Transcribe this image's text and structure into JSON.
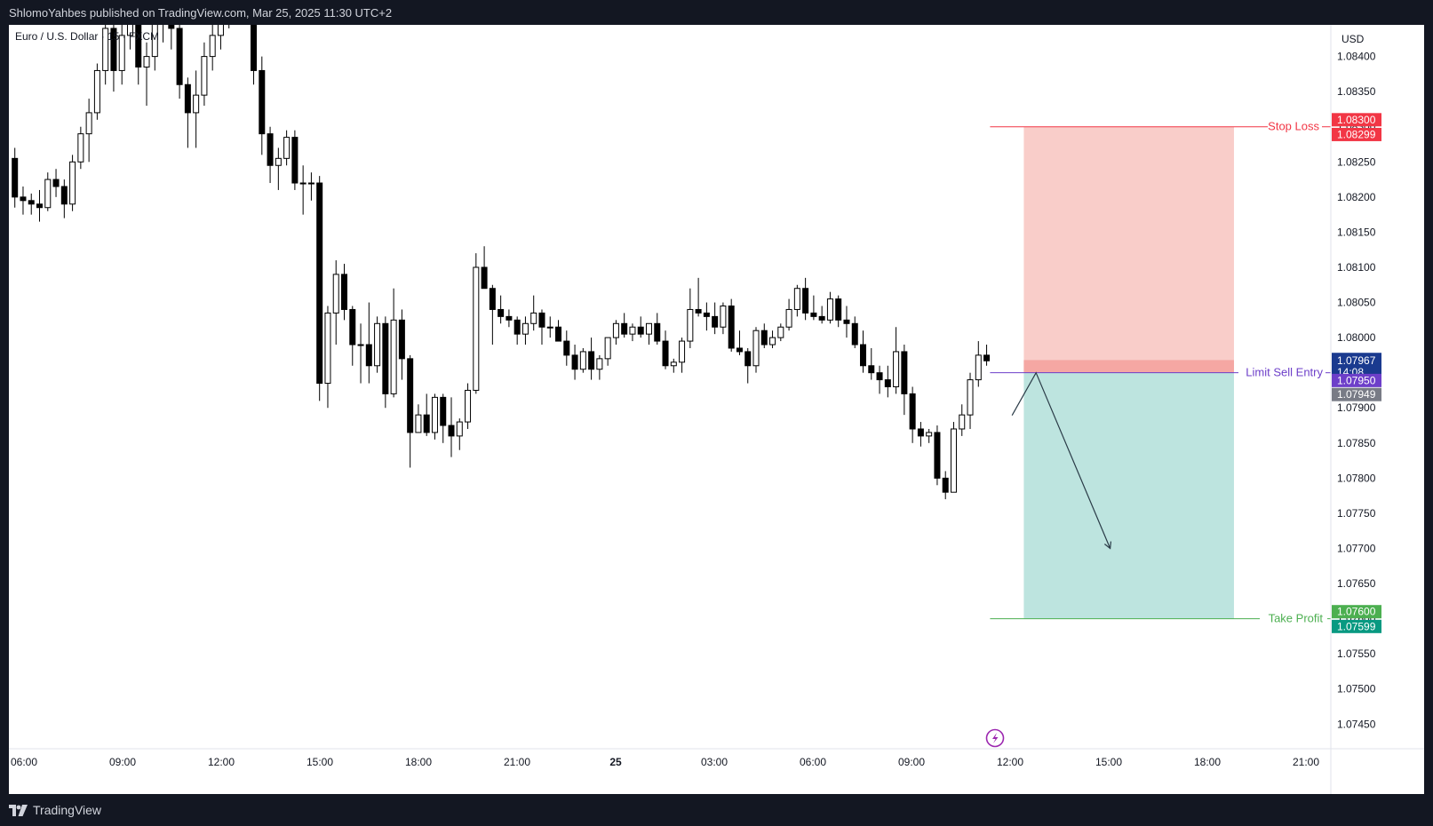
{
  "header": {
    "published": "ShlomoYahbes published on TradingView.com, Mar 25, 2025 11:30 UTC+2",
    "symbol": "Euro / U.S. Dollar · 15 · FXCM"
  },
  "footer": {
    "brand": "TradingView",
    "logo_icon": "tradingview-logo-icon"
  },
  "colors": {
    "stop_zone": "#f9cdc9",
    "target_zone": "#bde4df",
    "entry_band": "#f5a7a3",
    "stop_line": "#f23645",
    "target_line": "#4caf50",
    "entry_line": "#6d3fc9",
    "candle_up": "#ffffff",
    "candle_down": "#000000"
  },
  "chart_data": {
    "type": "candlestick",
    "symbol": "EURUSD",
    "timeframe_minutes": 15,
    "y_axis": {
      "currency": "USD",
      "ylim": [
        1.07415,
        1.08445
      ],
      "ticks": [
        "1.07450",
        "1.07500",
        "1.07550",
        "1.07600",
        "1.07650",
        "1.07700",
        "1.07750",
        "1.07800",
        "1.07850",
        "1.07900",
        "1.07950",
        "1.08000",
        "1.08050",
        "1.08100",
        "1.08150",
        "1.08200",
        "1.08250",
        "1.08300",
        "1.08350",
        "1.08400"
      ]
    },
    "x_axis": {
      "ticks": [
        {
          "label": "06:00",
          "bold": false
        },
        {
          "label": "09:00",
          "bold": false
        },
        {
          "label": "12:00",
          "bold": false
        },
        {
          "label": "15:00",
          "bold": false
        },
        {
          "label": "18:00",
          "bold": false
        },
        {
          "label": "21:00",
          "bold": false
        },
        {
          "label": "25",
          "bold": true
        },
        {
          "label": "03:00",
          "bold": false
        },
        {
          "label": "06:00",
          "bold": false
        },
        {
          "label": "09:00",
          "bold": false
        },
        {
          "label": "12:00",
          "bold": false
        },
        {
          "label": "15:00",
          "bold": false
        },
        {
          "label": "18:00",
          "bold": false
        },
        {
          "label": "21:00",
          "bold": false
        }
      ]
    },
    "candles": [
      {
        "o": 1.08255,
        "h": 1.0827,
        "l": 1.08185,
        "c": 1.082
      },
      {
        "o": 1.082,
        "h": 1.08215,
        "l": 1.08175,
        "c": 1.08195
      },
      {
        "o": 1.08195,
        "h": 1.08205,
        "l": 1.08175,
        "c": 1.0819
      },
      {
        "o": 1.0819,
        "h": 1.0821,
        "l": 1.08165,
        "c": 1.08185
      },
      {
        "o": 1.08185,
        "h": 1.08235,
        "l": 1.0818,
        "c": 1.08225
      },
      {
        "o": 1.08225,
        "h": 1.0824,
        "l": 1.082,
        "c": 1.08215
      },
      {
        "o": 1.08215,
        "h": 1.08225,
        "l": 1.0817,
        "c": 1.0819
      },
      {
        "o": 1.0819,
        "h": 1.0826,
        "l": 1.0818,
        "c": 1.0825
      },
      {
        "o": 1.0825,
        "h": 1.083,
        "l": 1.0824,
        "c": 1.0829
      },
      {
        "o": 1.0829,
        "h": 1.0834,
        "l": 1.0825,
        "c": 1.0832
      },
      {
        "o": 1.0832,
        "h": 1.0839,
        "l": 1.0831,
        "c": 1.0838
      },
      {
        "o": 1.0838,
        "h": 1.0847,
        "l": 1.0836,
        "c": 1.0844
      },
      {
        "o": 1.0844,
        "h": 1.0846,
        "l": 1.0835,
        "c": 1.0838
      },
      {
        "o": 1.0838,
        "h": 1.0845,
        "l": 1.0836,
        "c": 1.0843
      },
      {
        "o": 1.0843,
        "h": 1.085,
        "l": 1.0841,
        "c": 1.0847
      },
      {
        "o": 1.0847,
        "h": 1.0852,
        "l": 1.0836,
        "c": 1.08385
      },
      {
        "o": 1.08385,
        "h": 1.0842,
        "l": 1.0833,
        "c": 1.084
      },
      {
        "o": 1.084,
        "h": 1.0847,
        "l": 1.0838,
        "c": 1.08455
      },
      {
        "o": 1.08455,
        "h": 1.085,
        "l": 1.0842,
        "c": 1.0847
      },
      {
        "o": 1.0847,
        "h": 1.0852,
        "l": 1.0841,
        "c": 1.0844
      },
      {
        "o": 1.0844,
        "h": 1.0846,
        "l": 1.0834,
        "c": 1.0836
      },
      {
        "o": 1.0836,
        "h": 1.0837,
        "l": 1.0827,
        "c": 1.0832
      },
      {
        "o": 1.0832,
        "h": 1.0838,
        "l": 1.0827,
        "c": 1.08345
      },
      {
        "o": 1.08345,
        "h": 1.0842,
        "l": 1.0833,
        "c": 1.084
      },
      {
        "o": 1.084,
        "h": 1.0845,
        "l": 1.0838,
        "c": 1.0843
      },
      {
        "o": 1.0843,
        "h": 1.0848,
        "l": 1.0841,
        "c": 1.0845
      },
      {
        "o": 1.0845,
        "h": 1.0854,
        "l": 1.0844,
        "c": 1.0851
      },
      {
        "o": 1.0851,
        "h": 1.0853,
        "l": 1.0848,
        "c": 1.0849
      },
      {
        "o": 1.0849,
        "h": 1.0851,
        "l": 1.0846,
        "c": 1.0848
      },
      {
        "o": 1.0848,
        "h": 1.085,
        "l": 1.0836,
        "c": 1.0838
      },
      {
        "o": 1.0838,
        "h": 1.084,
        "l": 1.0826,
        "c": 1.0829
      },
      {
        "o": 1.0829,
        "h": 1.083,
        "l": 1.0822,
        "c": 1.08245
      },
      {
        "o": 1.08245,
        "h": 1.0827,
        "l": 1.0821,
        "c": 1.08255
      },
      {
        "o": 1.08255,
        "h": 1.08295,
        "l": 1.08245,
        "c": 1.08285
      },
      {
        "o": 1.08285,
        "h": 1.08295,
        "l": 1.0821,
        "c": 1.0822
      },
      {
        "o": 1.0822,
        "h": 1.08245,
        "l": 1.08175,
        "c": 1.0822
      },
      {
        "o": 1.0822,
        "h": 1.08235,
        "l": 1.08195,
        "c": 1.0822
      },
      {
        "o": 1.0822,
        "h": 1.0823,
        "l": 1.0791,
        "c": 1.07935
      },
      {
        "o": 1.07935,
        "h": 1.08045,
        "l": 1.079,
        "c": 1.08035
      },
      {
        "o": 1.08035,
        "h": 1.0811,
        "l": 1.0799,
        "c": 1.0809
      },
      {
        "o": 1.0809,
        "h": 1.08105,
        "l": 1.08025,
        "c": 1.0804
      },
      {
        "o": 1.0804,
        "h": 1.08045,
        "l": 1.0796,
        "c": 1.0799
      },
      {
        "o": 1.0799,
        "h": 1.0802,
        "l": 1.07935,
        "c": 1.0799
      },
      {
        "o": 1.0799,
        "h": 1.0805,
        "l": 1.07935,
        "c": 1.0796
      },
      {
        "o": 1.0796,
        "h": 1.0803,
        "l": 1.0795,
        "c": 1.0802
      },
      {
        "o": 1.0802,
        "h": 1.0803,
        "l": 1.079,
        "c": 1.0792
      },
      {
        "o": 1.0792,
        "h": 1.0807,
        "l": 1.07915,
        "c": 1.08025
      },
      {
        "o": 1.08025,
        "h": 1.0804,
        "l": 1.0794,
        "c": 1.0797
      },
      {
        "o": 1.0797,
        "h": 1.07975,
        "l": 1.07815,
        "c": 1.07865
      },
      {
        "o": 1.07865,
        "h": 1.07905,
        "l": 1.0787,
        "c": 1.0789
      },
      {
        "o": 1.0789,
        "h": 1.0792,
        "l": 1.0786,
        "c": 1.07865
      },
      {
        "o": 1.07865,
        "h": 1.0792,
        "l": 1.07855,
        "c": 1.07915
      },
      {
        "o": 1.07915,
        "h": 1.0792,
        "l": 1.0785,
        "c": 1.07875
      },
      {
        "o": 1.07875,
        "h": 1.07915,
        "l": 1.0783,
        "c": 1.0786
      },
      {
        "o": 1.0786,
        "h": 1.07885,
        "l": 1.0784,
        "c": 1.0788
      },
      {
        "o": 1.0788,
        "h": 1.07935,
        "l": 1.0787,
        "c": 1.07925
      },
      {
        "o": 1.07925,
        "h": 1.0812,
        "l": 1.0792,
        "c": 1.081
      },
      {
        "o": 1.081,
        "h": 1.0813,
        "l": 1.0807,
        "c": 1.0807
      },
      {
        "o": 1.0807,
        "h": 1.08075,
        "l": 1.0799,
        "c": 1.0804
      },
      {
        "o": 1.0804,
        "h": 1.0806,
        "l": 1.0802,
        "c": 1.0803
      },
      {
        "o": 1.0803,
        "h": 1.0804,
        "l": 1.08015,
        "c": 1.08025
      },
      {
        "o": 1.08025,
        "h": 1.0803,
        "l": 1.0799,
        "c": 1.08005
      },
      {
        "o": 1.08005,
        "h": 1.0803,
        "l": 1.0799,
        "c": 1.0802
      },
      {
        "o": 1.0802,
        "h": 1.0806,
        "l": 1.0801,
        "c": 1.08035
      },
      {
        "o": 1.08035,
        "h": 1.0804,
        "l": 1.0799,
        "c": 1.08015
      },
      {
        "o": 1.08015,
        "h": 1.0803,
        "l": 1.08,
        "c": 1.08015
      },
      {
        "o": 1.08015,
        "h": 1.08025,
        "l": 1.07995,
        "c": 1.07995
      },
      {
        "o": 1.07995,
        "h": 1.0801,
        "l": 1.0796,
        "c": 1.07975
      },
      {
        "o": 1.07975,
        "h": 1.0799,
        "l": 1.0794,
        "c": 1.07955
      },
      {
        "o": 1.07955,
        "h": 1.07985,
        "l": 1.0795,
        "c": 1.0798
      },
      {
        "o": 1.0798,
        "h": 1.08,
        "l": 1.0794,
        "c": 1.07955
      },
      {
        "o": 1.07955,
        "h": 1.07975,
        "l": 1.0794,
        "c": 1.0797
      },
      {
        "o": 1.0797,
        "h": 1.08,
        "l": 1.0796,
        "c": 1.08
      },
      {
        "o": 1.08,
        "h": 1.08025,
        "l": 1.0799,
        "c": 1.0802
      },
      {
        "o": 1.0802,
        "h": 1.08035,
        "l": 1.08,
        "c": 1.08005
      },
      {
        "o": 1.08005,
        "h": 1.0802,
        "l": 1.07995,
        "c": 1.08015
      },
      {
        "o": 1.08015,
        "h": 1.0803,
        "l": 1.08,
        "c": 1.08005
      },
      {
        "o": 1.08005,
        "h": 1.0802,
        "l": 1.0799,
        "c": 1.0802
      },
      {
        "o": 1.0802,
        "h": 1.08035,
        "l": 1.0799,
        "c": 1.07995
      },
      {
        "o": 1.07995,
        "h": 1.0801,
        "l": 1.07955,
        "c": 1.0796
      },
      {
        "o": 1.0796,
        "h": 1.0797,
        "l": 1.0795,
        "c": 1.07965
      },
      {
        "o": 1.07965,
        "h": 1.08,
        "l": 1.0795,
        "c": 1.07995
      },
      {
        "o": 1.07995,
        "h": 1.0807,
        "l": 1.07985,
        "c": 1.0804
      },
      {
        "o": 1.0804,
        "h": 1.08085,
        "l": 1.0803,
        "c": 1.08035
      },
      {
        "o": 1.08035,
        "h": 1.0805,
        "l": 1.0801,
        "c": 1.0803
      },
      {
        "o": 1.0803,
        "h": 1.0805,
        "l": 1.08005,
        "c": 1.08015
      },
      {
        "o": 1.08015,
        "h": 1.0805,
        "l": 1.08005,
        "c": 1.08045
      },
      {
        "o": 1.08045,
        "h": 1.08055,
        "l": 1.0798,
        "c": 1.07985
      },
      {
        "o": 1.07985,
        "h": 1.0801,
        "l": 1.07975,
        "c": 1.0798
      },
      {
        "o": 1.0798,
        "h": 1.07985,
        "l": 1.07935,
        "c": 1.0796
      },
      {
        "o": 1.0796,
        "h": 1.08015,
        "l": 1.0795,
        "c": 1.0801
      },
      {
        "o": 1.0801,
        "h": 1.0802,
        "l": 1.07985,
        "c": 1.0799
      },
      {
        "o": 1.0799,
        "h": 1.0801,
        "l": 1.07985,
        "c": 1.08
      },
      {
        "o": 1.08,
        "h": 1.0802,
        "l": 1.07995,
        "c": 1.08015
      },
      {
        "o": 1.08015,
        "h": 1.08055,
        "l": 1.0801,
        "c": 1.0804
      },
      {
        "o": 1.0804,
        "h": 1.08075,
        "l": 1.0803,
        "c": 1.0807
      },
      {
        "o": 1.0807,
        "h": 1.08085,
        "l": 1.08025,
        "c": 1.08035
      },
      {
        "o": 1.08035,
        "h": 1.0806,
        "l": 1.08025,
        "c": 1.0803
      },
      {
        "o": 1.0803,
        "h": 1.08045,
        "l": 1.0802,
        "c": 1.08025
      },
      {
        "o": 1.08025,
        "h": 1.08065,
        "l": 1.0802,
        "c": 1.08055
      },
      {
        "o": 1.08055,
        "h": 1.0806,
        "l": 1.08015,
        "c": 1.08025
      },
      {
        "o": 1.08025,
        "h": 1.08045,
        "l": 1.08,
        "c": 1.0802
      },
      {
        "o": 1.0802,
        "h": 1.0803,
        "l": 1.07985,
        "c": 1.0799
      },
      {
        "o": 1.0799,
        "h": 1.0801,
        "l": 1.0795,
        "c": 1.0796
      },
      {
        "o": 1.0796,
        "h": 1.07985,
        "l": 1.0794,
        "c": 1.0795
      },
      {
        "o": 1.0795,
        "h": 1.0796,
        "l": 1.0792,
        "c": 1.0794
      },
      {
        "o": 1.0794,
        "h": 1.0796,
        "l": 1.07915,
        "c": 1.0793
      },
      {
        "o": 1.0793,
        "h": 1.08015,
        "l": 1.0792,
        "c": 1.0798
      },
      {
        "o": 1.0798,
        "h": 1.0799,
        "l": 1.0789,
        "c": 1.0792
      },
      {
        "o": 1.0792,
        "h": 1.0793,
        "l": 1.0785,
        "c": 1.0787
      },
      {
        "o": 1.0787,
        "h": 1.0788,
        "l": 1.07845,
        "c": 1.0786
      },
      {
        "o": 1.0786,
        "h": 1.0787,
        "l": 1.0785,
        "c": 1.07865
      },
      {
        "o": 1.07865,
        "h": 1.07875,
        "l": 1.0779,
        "c": 1.078
      },
      {
        "o": 1.078,
        "h": 1.0781,
        "l": 1.0777,
        "c": 1.0778
      },
      {
        "o": 1.0778,
        "h": 1.0788,
        "l": 1.0778,
        "c": 1.0787
      },
      {
        "o": 1.0787,
        "h": 1.07905,
        "l": 1.0786,
        "c": 1.0789
      },
      {
        "o": 1.0789,
        "h": 1.0795,
        "l": 1.0787,
        "c": 1.0794
      },
      {
        "o": 1.0794,
        "h": 1.07995,
        "l": 1.0793,
        "c": 1.07975
      },
      {
        "o": 1.07975,
        "h": 1.0799,
        "l": 1.0796,
        "c": 1.07967
      }
    ],
    "position": {
      "type": "short",
      "stop_loss": {
        "label": "Stop Loss",
        "price": "1.08300",
        "price2": "1.08299"
      },
      "entry": {
        "label": "Limit Sell Entry",
        "price": "1.07950"
      },
      "take_profit": {
        "label": "Take Profit",
        "price": "1.07600",
        "price2": "1.07599"
      },
      "entry_band_top": 1.07968,
      "start_candle": 123,
      "end_time_fraction": 0.92
    },
    "arrow": {
      "from": {
        "candle": 124,
        "price": 1.0795
      },
      "to": {
        "candle": 133,
        "price": 1.077
      }
    },
    "current_price": {
      "price": "1.07967",
      "countdown": "14:08"
    },
    "last_label": "1.07949",
    "event_marker_icon": "lightning-bolt-icon"
  }
}
